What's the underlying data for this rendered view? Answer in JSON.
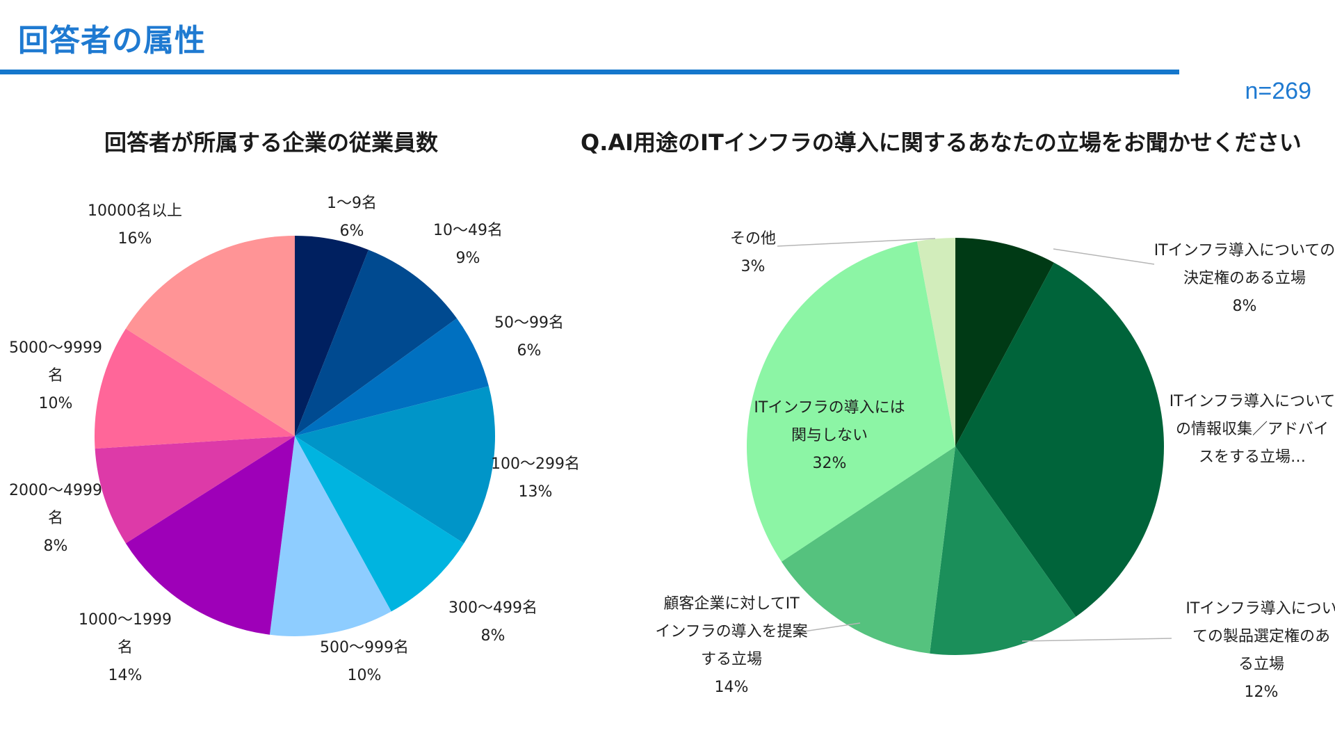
{
  "header": {
    "title": "回答者の属性",
    "sample_size": "n=269"
  },
  "chart_data": [
    {
      "type": "pie",
      "title": "回答者が所属する企業の従業員数",
      "slices": [
        {
          "lines": [
            "1～9名"
          ],
          "pct": "6%",
          "value": 6,
          "color": "#002060"
        },
        {
          "lines": [
            "10～49名"
          ],
          "pct": "9%",
          "value": 9,
          "color": "#004a90"
        },
        {
          "lines": [
            "50～99名"
          ],
          "pct": "6%",
          "value": 6,
          "color": "#0070c0"
        },
        {
          "lines": [
            "100～299名"
          ],
          "pct": "13%",
          "value": 13,
          "color": "#0095c8"
        },
        {
          "lines": [
            "300～499名"
          ],
          "pct": "8%",
          "value": 8,
          "color": "#00b4e0"
        },
        {
          "lines": [
            "500～999名"
          ],
          "pct": "10%",
          "value": 10,
          "color": "#8ecdff"
        },
        {
          "lines": [
            "1000～1999",
            "名"
          ],
          "pct": "14%",
          "value": 14,
          "color": "#9e00b8"
        },
        {
          "lines": [
            "2000～4999",
            "名"
          ],
          "pct": "8%",
          "value": 8,
          "color": "#dd3aa8"
        },
        {
          "lines": [
            "5000～9999",
            "名"
          ],
          "pct": "10%",
          "value": 10,
          "color": "#ff6699"
        },
        {
          "lines": [
            "10000名以上"
          ],
          "pct": "16%",
          "value": 16,
          "color": "#ff9496"
        }
      ]
    },
    {
      "type": "pie",
      "title": "Q.AI用途のITインフラの導入に関するあなたの立場をお聞かせください",
      "slices": [
        {
          "lines": [
            "ITインフラ導入についての",
            "決定権のある立場"
          ],
          "pct": "8%",
          "value": 8,
          "color": "#003a15"
        },
        {
          "lines": [
            "ITインフラ導入について",
            "の情報収集／アドバイ",
            "スをする立場…"
          ],
          "pct": "",
          "value": 33,
          "color": "#00643a"
        },
        {
          "lines": [
            "ITインフラ導入につい",
            "ての製品選定権のあ",
            "る立場"
          ],
          "pct": "12%",
          "value": 12,
          "color": "#1b8f5a"
        },
        {
          "lines": [
            "顧客企業に対してIT",
            "インフラの導入を提案",
            "する立場"
          ],
          "pct": "14%",
          "value": 14,
          "color": "#55c27e"
        },
        {
          "lines": [
            "ITインフラの導入には",
            "関与しない"
          ],
          "pct": "32%",
          "value": 32,
          "color": "#8cf5a5"
        },
        {
          "lines": [
            "その他"
          ],
          "pct": "3%",
          "value": 3,
          "color": "#d2edbb"
        }
      ]
    }
  ]
}
